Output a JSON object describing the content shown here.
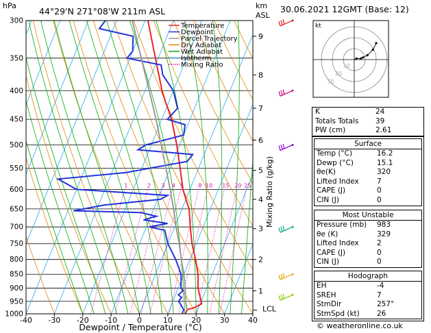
{
  "header": {
    "location": "44°29'N  271°08'W  211m  ASL",
    "date": "30.06.2021  12GMT  (Base: 12)",
    "pressure_unit": "hPa",
    "km_unit": "km",
    "asl_unit": "ASL"
  },
  "chart_data": {
    "type": "skew-t",
    "xlabel": "Dewpoint / Temperature (°C)",
    "right_axis_label": "Mixing Ratio (g/kg)",
    "x_ticks": [
      -40,
      -30,
      -20,
      -10,
      0,
      10,
      20,
      30,
      40
    ],
    "pressure_levels": [
      300,
      350,
      400,
      450,
      500,
      550,
      600,
      650,
      700,
      750,
      800,
      850,
      900,
      950,
      1000
    ],
    "km_ticks": [
      {
        "label": "1",
        "p": 910
      },
      {
        "label": "2",
        "p": 800
      },
      {
        "label": "3",
        "p": 705
      },
      {
        "label": "4",
        "p": 625
      },
      {
        "label": "5",
        "p": 555
      },
      {
        "label": "6",
        "p": 490
      },
      {
        "label": "7",
        "p": 430
      },
      {
        "label": "8",
        "p": 375
      },
      {
        "label": "9",
        "p": 320
      }
    ],
    "lcl_label": "LCL",
    "lcl_p": 985,
    "mixing_ratio_labels": [
      "1",
      "2",
      "3",
      "4",
      "5",
      "8",
      "10",
      "15",
      "20",
      "25"
    ],
    "mixing_ratio_values": [
      1,
      2,
      3,
      4,
      5,
      8,
      10,
      15,
      20,
      25
    ],
    "legend": [
      {
        "name": "Temperature",
        "color": "#ee2222",
        "style": "solid"
      },
      {
        "name": "Dewpoint",
        "color": "#2233dd",
        "style": "solid"
      },
      {
        "name": "Parcel Trajectory",
        "color": "#999999",
        "style": "solid"
      },
      {
        "name": "Dry Adiabat",
        "color": "#dd8800",
        "style": "solid"
      },
      {
        "name": "Wet Adiabat",
        "color": "#00aa00",
        "style": "solid"
      },
      {
        "name": "Isotherm",
        "color": "#22aaee",
        "style": "solid"
      },
      {
        "name": "Mixing Ratio",
        "color": "#dd00aa",
        "style": "dotted"
      }
    ],
    "series": [
      {
        "key": "temperature",
        "points": [
          [
            1000,
            16.2
          ],
          [
            983,
            16.2
          ],
          [
            975,
            18.5
          ],
          [
            960,
            20.5
          ],
          [
            950,
            20
          ],
          [
            925,
            18.5
          ],
          [
            900,
            17
          ],
          [
            850,
            15
          ],
          [
            800,
            12
          ],
          [
            750,
            8.5
          ],
          [
            700,
            5.5
          ],
          [
            650,
            2.5
          ],
          [
            625,
            0
          ],
          [
            600,
            -2.5
          ],
          [
            550,
            -6.5
          ],
          [
            500,
            -11
          ],
          [
            450,
            -16.5
          ],
          [
            420,
            -21
          ],
          [
            400,
            -24
          ],
          [
            350,
            -31
          ],
          [
            300,
            -39
          ]
        ]
      },
      {
        "key": "dewpoint",
        "points": [
          [
            1000,
            15.1
          ],
          [
            983,
            15
          ],
          [
            960,
            13
          ],
          [
            950,
            12
          ],
          [
            935,
            12.5
          ],
          [
            925,
            11
          ],
          [
            910,
            12
          ],
          [
            900,
            11
          ],
          [
            850,
            9
          ],
          [
            800,
            5
          ],
          [
            750,
            0
          ],
          [
            710,
            -3
          ],
          [
            700,
            -9
          ],
          [
            690,
            -3
          ],
          [
            680,
            -12
          ],
          [
            670,
            -8
          ],
          [
            660,
            -14
          ],
          [
            655,
            -38
          ],
          [
            640,
            -28
          ],
          [
            625,
            -9
          ],
          [
            615,
            -7
          ],
          [
            600,
            -40
          ],
          [
            575,
            -48
          ],
          [
            560,
            -25
          ],
          [
            535,
            -5
          ],
          [
            520,
            -4
          ],
          [
            510,
            -24
          ],
          [
            500,
            -22
          ],
          [
            480,
            -10
          ],
          [
            460,
            -11
          ],
          [
            450,
            -18
          ],
          [
            430,
            -16
          ],
          [
            400,
            -20
          ],
          [
            375,
            -26
          ],
          [
            360,
            -28
          ],
          [
            350,
            -41
          ],
          [
            340,
            -40
          ],
          [
            320,
            -42
          ],
          [
            310,
            -55
          ],
          [
            300,
            -54
          ]
        ]
      },
      {
        "key": "parcel",
        "points": [
          [
            983,
            16.2
          ],
          [
            950,
            14.5
          ],
          [
            900,
            12.5
          ],
          [
            850,
            10
          ],
          [
            800,
            7
          ],
          [
            750,
            4
          ],
          [
            700,
            0.5
          ],
          [
            650,
            -3
          ],
          [
            600,
            -7
          ],
          [
            550,
            -11.5
          ],
          [
            500,
            -16.5
          ],
          [
            450,
            -22
          ],
          [
            400,
            -28.5
          ],
          [
            350,
            -36
          ],
          [
            300,
            -44.5
          ]
        ]
      }
    ],
    "wind_barbs": [
      {
        "p": 300,
        "color": "#dd1111"
      },
      {
        "p": 400,
        "color": "#cc0077"
      },
      {
        "p": 500,
        "color": "#8800cc"
      },
      {
        "p": 700,
        "color": "#00aa88"
      },
      {
        "p": 850,
        "color": "#ddaa00"
      },
      {
        "p": 925,
        "color": "#88cc00"
      }
    ],
    "hodograph": {
      "label": "kt",
      "ring_labels": [
        "10",
        "20",
        "30"
      ],
      "points": [
        [
          0,
          0
        ],
        [
          2,
          1
        ],
        [
          6,
          1
        ],
        [
          8,
          2
        ],
        [
          12,
          4
        ],
        [
          17,
          9
        ],
        [
          20,
          15
        ]
      ]
    }
  },
  "indices": {
    "top": [
      {
        "label": "K",
        "value": "24"
      },
      {
        "label": "Totals Totals",
        "value": "39"
      },
      {
        "label": "PW (cm)",
        "value": "2.61"
      }
    ],
    "surface": {
      "title": "Surface",
      "rows": [
        {
          "label": "Temp (°C)",
          "value": "16.2"
        },
        {
          "label": "Dewp (°C)",
          "value": "15.1"
        },
        {
          "label": "θe(K)",
          "value": "320"
        },
        {
          "label": "Lifted Index",
          "value": "7"
        },
        {
          "label": "CAPE (J)",
          "value": "0"
        },
        {
          "label": "CIN (J)",
          "value": "0"
        }
      ]
    },
    "most_unstable": {
      "title": "Most Unstable",
      "rows": [
        {
          "label": "Pressure (mb)",
          "value": "983"
        },
        {
          "label": "θe (K)",
          "value": "329"
        },
        {
          "label": "Lifted Index",
          "value": "2"
        },
        {
          "label": "CAPE (J)",
          "value": "0"
        },
        {
          "label": "CIN (J)",
          "value": "0"
        }
      ]
    },
    "hodograph": {
      "title": "Hodograph",
      "rows": [
        {
          "label": "EH",
          "value": "-4"
        },
        {
          "label": "SREH",
          "value": "7"
        },
        {
          "label": "StmDir",
          "value": "257°"
        },
        {
          "label": "StmSpd (kt)",
          "value": "26"
        }
      ]
    }
  },
  "copyright": "© weatheronline.co.uk"
}
